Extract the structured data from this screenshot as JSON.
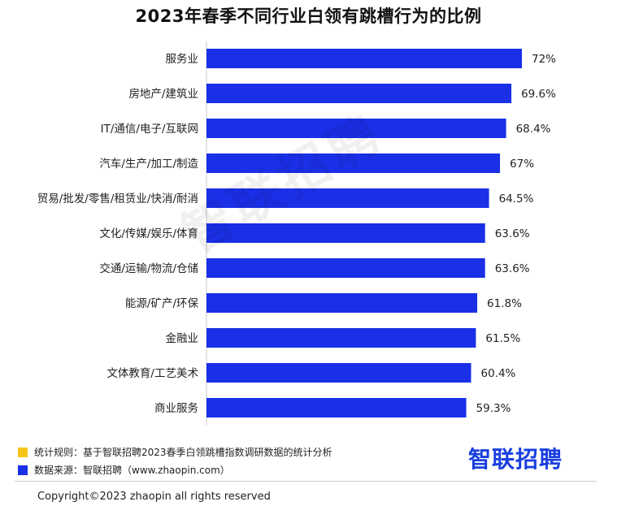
{
  "chart_data": {
    "type": "bar",
    "orientation": "horizontal",
    "title": "2023年春季不同行业白领有跳槽行为的比例",
    "categories": [
      "服务业",
      "房地产/建筑业",
      "IT/通信/电子/互联网",
      "汽车/生产/加工/制造",
      "贸易/批发/零售/租赁业/快消/耐消",
      "文化/传媒/娱乐/体育",
      "交通/运输/物流/仓储",
      "能源/矿产/环保",
      "金融业",
      "文体教育/工艺美术",
      "商业服务"
    ],
    "values": [
      72,
      69.6,
      68.4,
      67,
      64.5,
      63.6,
      63.6,
      61.8,
      61.5,
      60.4,
      59.3
    ],
    "value_labels": [
      "72%",
      "69.6%",
      "68.4%",
      "67%",
      "64.5%",
      "63.6%",
      "63.6%",
      "61.8%",
      "61.5%",
      "60.4%",
      "59.3%"
    ],
    "xlim": [
      0,
      72
    ],
    "bar_color": "#1a2fe6",
    "grid": false,
    "xlabel": "",
    "ylabel": ""
  },
  "watermark": "智联招聘",
  "legend": {
    "rule_color": "#f5c518",
    "rule_text": "统计规则：基于智联招聘2023春季白领跳槽指数调研数据的统计分析",
    "source_color": "#1a2fe6",
    "source_text": "数据来源：智联招聘（www.zhaopin.com）"
  },
  "logo_text": "智联招聘",
  "copyright": "Copyright©2023 zhaopin all rights reserved"
}
